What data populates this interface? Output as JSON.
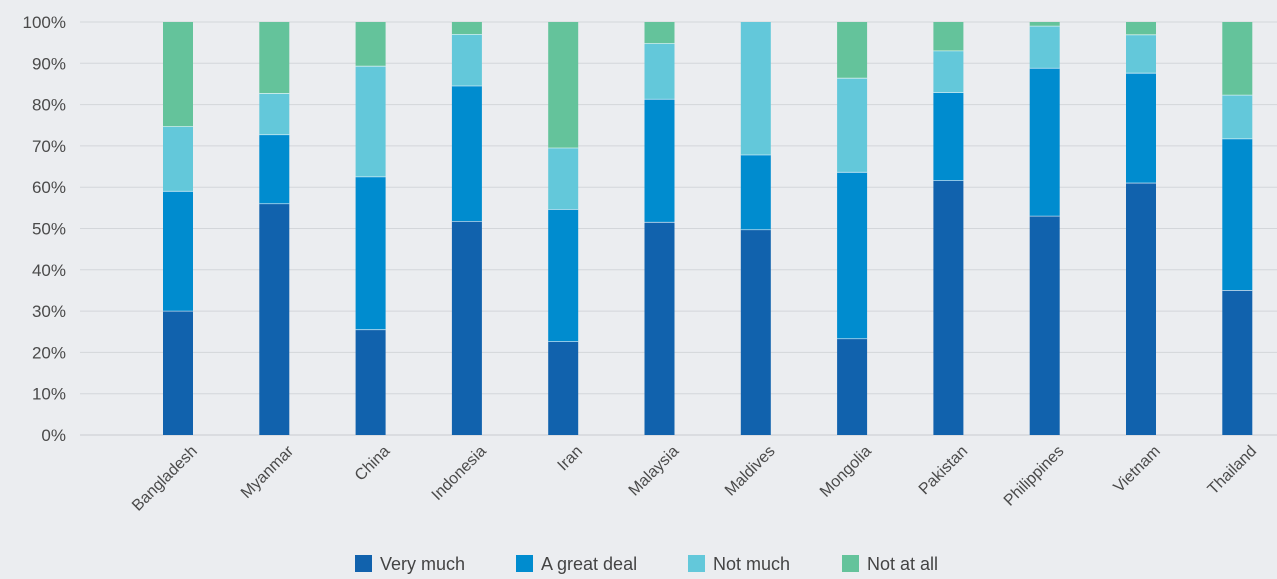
{
  "chart_data": {
    "type": "bar",
    "stacked": true,
    "percent_scale": true,
    "categories": [
      "Bangladesh",
      "Myanmar",
      "China",
      "Indonesia",
      "Iran",
      "Malaysia",
      "Maldives",
      "Mongolia",
      "Pakistan",
      "Philippines",
      "Vietnam",
      "Thailand"
    ],
    "series": [
      {
        "name": "Very much",
        "color": "#1162ad",
        "values": [
          30,
          56,
          25.5,
          51.7,
          22.6,
          51.5,
          49.7,
          23.3,
          61.6,
          53,
          61,
          35
        ]
      },
      {
        "name": "A great deal",
        "color": "#008ccf",
        "values": [
          29,
          16.7,
          37,
          32.8,
          32,
          29.8,
          18.1,
          40.3,
          21.3,
          35.8,
          26.6,
          36.7
        ]
      },
      {
        "name": "Not much",
        "color": "#63c8da",
        "values": [
          15.7,
          10,
          26.8,
          12.5,
          14.9,
          13.5,
          32.2,
          22.8,
          10.1,
          10.2,
          9.3,
          10.6
        ]
      },
      {
        "name": "Not at all",
        "color": "#64c39b",
        "values": [
          25.3,
          17.3,
          10.7,
          3,
          30.5,
          5.2,
          0,
          13.6,
          7,
          1,
          3.1,
          17.7
        ]
      }
    ],
    "ylim": [
      0,
      100
    ],
    "yticks": [
      "0%",
      "10%",
      "20%",
      "30%",
      "40%",
      "50%",
      "60%",
      "70%",
      "80%",
      "90%",
      "100%"
    ],
    "grid": true,
    "legend_position": "bottom-center",
    "title": "",
    "xlabel": "",
    "ylabel": ""
  }
}
